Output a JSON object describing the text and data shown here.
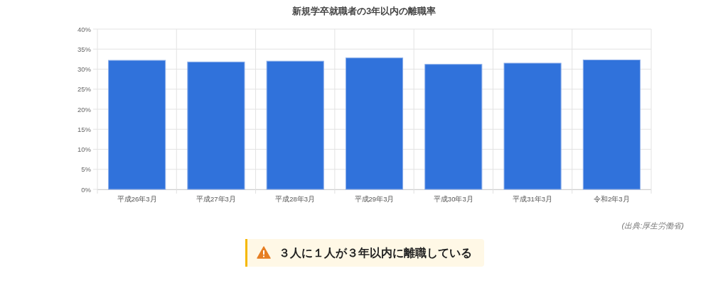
{
  "chart_data": {
    "type": "bar",
    "title": "新規学卒就職者の3年以内の離職率",
    "categories": [
      "平成26年3月",
      "平成27年3月",
      "平成28年3月",
      "平成29年3月",
      "平成30年3月",
      "平成31年3月",
      "令和2年3月"
    ],
    "values": [
      32.2,
      31.8,
      32.0,
      32.8,
      31.2,
      31.5,
      32.3
    ],
    "color": "#3072db",
    "ylim": [
      0,
      40
    ],
    "yticks": [
      {
        "value": 0,
        "label": "0%"
      },
      {
        "value": 5,
        "label": "5%"
      },
      {
        "value": 10,
        "label": "10%"
      },
      {
        "value": 15,
        "label": "15%"
      },
      {
        "value": 20,
        "label": "20%"
      },
      {
        "value": 25,
        "label": "25%"
      },
      {
        "value": 30,
        "label": "30%"
      },
      {
        "value": 35,
        "label": "35%"
      },
      {
        "value": 40,
        "label": "40%"
      }
    ],
    "grid": true,
    "annotations": [
      "(出典:厚生労働省)",
      "３人に１人が３年以内に離職している"
    ]
  }
}
